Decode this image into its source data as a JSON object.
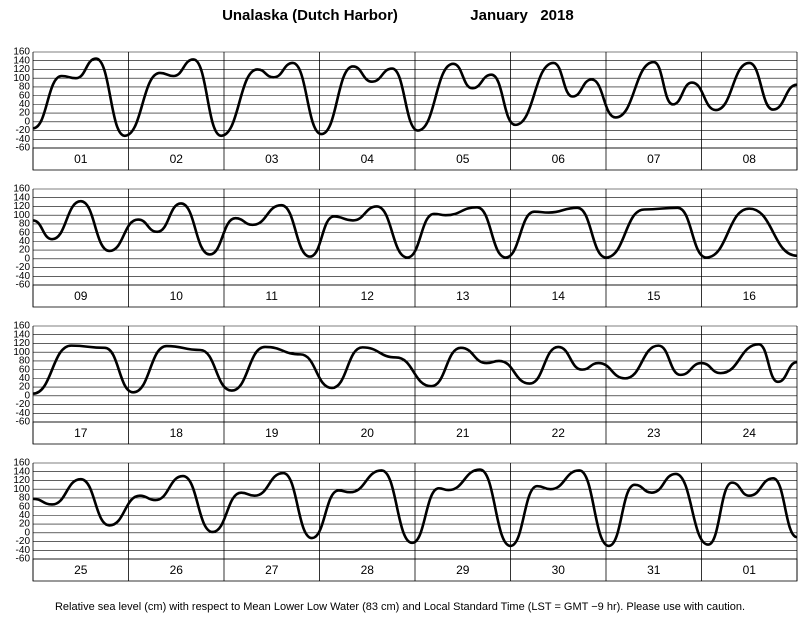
{
  "title": "Unalaska (Dutch Harbor)",
  "date": "January   2018",
  "note": "Relative sea level (cm) with respect to Mean Lower Low Water (83 cm) and Local Standard Time (LST = GMT −9 hr). Please use with caution.",
  "chart_data": [
    {
      "type": "line",
      "color": "#000000",
      "grid": true,
      "xlim": [
        0,
        8
      ],
      "ylim": [
        -60,
        160
      ],
      "yticks": [
        -60,
        -40,
        -20,
        0,
        20,
        40,
        60,
        80,
        100,
        120,
        140,
        160
      ],
      "categories": [
        "01",
        "02",
        "03",
        "04",
        "05",
        "06",
        "07",
        "08"
      ],
      "x": [
        0,
        0.3,
        0.45,
        0.66,
        0.96,
        1.33,
        1.47,
        1.68,
        1.97,
        2.35,
        2.52,
        2.72,
        3.02,
        3.35,
        3.55,
        3.76,
        4.03,
        4.4,
        4.6,
        4.8,
        5.05,
        5.45,
        5.65,
        5.85,
        6.1,
        6.5,
        6.7,
        6.9,
        7.15,
        7.5,
        7.75,
        8
      ],
      "values": [
        -15,
        105,
        100,
        145,
        -32,
        112,
        105,
        143,
        -32,
        120,
        102,
        135,
        -28,
        127,
        92,
        122,
        -20,
        133,
        77,
        108,
        -7,
        135,
        58,
        97,
        10,
        137,
        40,
        90,
        27,
        135,
        28,
        85
      ]
    },
    {
      "type": "line",
      "color": "#000000",
      "grid": true,
      "xlim": [
        0,
        8
      ],
      "ylim": [
        -60,
        160
      ],
      "yticks": [
        -60,
        -40,
        -20,
        0,
        20,
        40,
        60,
        80,
        100,
        120,
        140,
        160
      ],
      "categories": [
        "09",
        "10",
        "11",
        "12",
        "13",
        "14",
        "15",
        "16"
      ],
      "x": [
        0,
        0.2,
        0.5,
        0.8,
        1.1,
        1.3,
        1.55,
        1.85,
        2.12,
        2.3,
        2.6,
        2.9,
        3.15,
        3.35,
        3.6,
        3.92,
        4.2,
        4.32,
        4.65,
        4.95,
        5.25,
        5.4,
        5.7,
        6.0,
        6.4,
        6.75,
        7.05,
        7.5,
        8
      ],
      "values": [
        88,
        45,
        132,
        18,
        90,
        62,
        127,
        10,
        93,
        78,
        123,
        5,
        97,
        88,
        120,
        3,
        103,
        100,
        118,
        3,
        108,
        106,
        117,
        3,
        113,
        117,
        3,
        115,
        7
      ]
    },
    {
      "type": "line",
      "color": "#000000",
      "grid": true,
      "xlim": [
        0,
        8
      ],
      "ylim": [
        -60,
        160
      ],
      "yticks": [
        -60,
        -40,
        -20,
        0,
        20,
        40,
        60,
        80,
        100,
        120,
        140,
        160
      ],
      "categories": [
        "17",
        "18",
        "19",
        "20",
        "21",
        "22",
        "23",
        "24"
      ],
      "x": [
        0,
        0.4,
        0.75,
        1.05,
        1.4,
        1.75,
        2.08,
        2.43,
        2.8,
        3.13,
        3.45,
        3.8,
        4.17,
        4.48,
        4.75,
        4.88,
        5.2,
        5.5,
        5.75,
        5.92,
        6.2,
        6.55,
        6.78,
        7.0,
        7.2,
        7.6,
        7.8,
        8
      ],
      "values": [
        5,
        115,
        110,
        8,
        114,
        105,
        12,
        112,
        95,
        18,
        111,
        88,
        22,
        110,
        75,
        80,
        28,
        112,
        60,
        75,
        40,
        115,
        48,
        75,
        52,
        118,
        32,
        77
      ]
    },
    {
      "type": "line",
      "color": "#000000",
      "grid": true,
      "xlim": [
        0,
        8
      ],
      "ylim": [
        -60,
        160
      ],
      "yticks": [
        -60,
        -40,
        -20,
        0,
        20,
        40,
        60,
        80,
        100,
        120,
        140,
        160
      ],
      "categories": [
        "25",
        "26",
        "27",
        "28",
        "29",
        "30",
        "31",
        "01"
      ],
      "x": [
        0,
        0.2,
        0.5,
        0.8,
        1.12,
        1.28,
        1.57,
        1.88,
        2.18,
        2.32,
        2.62,
        2.92,
        3.2,
        3.32,
        3.65,
        3.97,
        4.25,
        4.35,
        4.68,
        5.0,
        5.28,
        5.42,
        5.72,
        6.03,
        6.3,
        6.48,
        6.73,
        7.07,
        7.32,
        7.5,
        7.75,
        8
      ],
      "values": [
        78,
        65,
        123,
        17,
        85,
        75,
        130,
        2,
        92,
        85,
        137,
        -12,
        97,
        93,
        143,
        -23,
        102,
        98,
        145,
        -30,
        107,
        100,
        143,
        -30,
        110,
        92,
        135,
        -27,
        115,
        85,
        125,
        -10
      ]
    }
  ]
}
